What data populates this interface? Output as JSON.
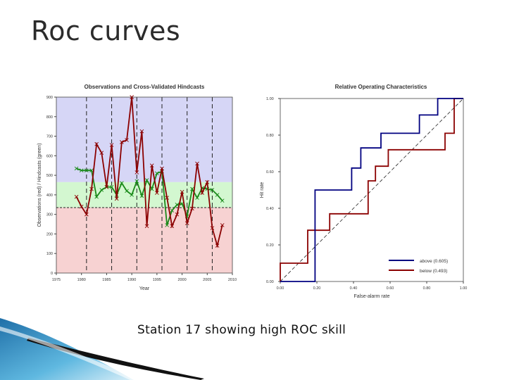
{
  "slide": {
    "title": "Roc curves",
    "caption": "Station 17 showing high ROC skill"
  },
  "colors": {
    "above_band": "#d6d6f6",
    "normal_band": "#d3f7d0",
    "below_band": "#f7d2d2",
    "observations": "#8b0000",
    "hindcasts": "#1a8a1a",
    "roc_above": "#000080",
    "roc_below": "#8b0000"
  },
  "chart_data": [
    {
      "type": "line",
      "title": "Observations and Cross-Validated Hindcasts",
      "xlabel": "Year",
      "ylabel": "Observations (red) / Hindcasts (green)",
      "xlim": [
        1975,
        2010
      ],
      "ylim": [
        0,
        900
      ],
      "x_ticks": [
        "1975",
        "1980",
        "1985",
        "1990",
        "1995",
        "2000",
        "2005",
        "2010"
      ],
      "y_ticks": [
        "0",
        "100",
        "200",
        "300",
        "400",
        "500",
        "600",
        "700",
        "800",
        "900"
      ],
      "tercile_bounds": {
        "lower": 335,
        "upper": 465
      },
      "dashed_year_markers": [
        1981,
        1986,
        1991,
        1996,
        2001,
        2006
      ],
      "x": [
        1979,
        1980,
        1981,
        1982,
        1983,
        1984,
        1985,
        1986,
        1987,
        1988,
        1989,
        1990,
        1991,
        1992,
        1993,
        1994,
        1995,
        1996,
        1997,
        1998,
        1999,
        2000,
        2001,
        2002,
        2003,
        2004,
        2005,
        2006,
        2007,
        2008
      ],
      "series": [
        {
          "name": "Observations",
          "color": "#8b0000",
          "values": [
            390,
            340,
            300,
            430,
            660,
            615,
            440,
            655,
            380,
            670,
            680,
            900,
            515,
            725,
            240,
            550,
            410,
            535,
            385,
            240,
            300,
            415,
            255,
            330,
            560,
            410,
            465,
            230,
            140,
            245
          ]
        },
        {
          "name": "Hindcasts",
          "color": "#1a8a1a",
          "values": [
            535,
            525,
            525,
            525,
            390,
            425,
            440,
            440,
            400,
            460,
            420,
            400,
            470,
            395,
            475,
            430,
            510,
            520,
            245,
            320,
            350,
            355,
            290,
            430,
            385,
            435,
            430,
            425,
            400,
            370
          ]
        }
      ]
    },
    {
      "type": "line",
      "title": "Relative Operating Characteristics",
      "xlabel": "False-alarm rate",
      "ylabel": "Hit rate",
      "xlim": [
        0,
        1
      ],
      "ylim": [
        0,
        1
      ],
      "x_ticks": [
        "0.00",
        "0.20",
        "0.40",
        "0.60",
        "0.80",
        "1.00"
      ],
      "y_ticks": [
        "0.00",
        "0.20",
        "0.40",
        "0.60",
        "0.80",
        "1.00"
      ],
      "legend_position": "bottom-right",
      "series": [
        {
          "name": "above (0.605)",
          "color": "#000080",
          "points": [
            [
              0,
              0
            ],
            [
              0.19,
              0
            ],
            [
              0.19,
              0.5
            ],
            [
              0.39,
              0.5
            ],
            [
              0.39,
              0.62
            ],
            [
              0.44,
              0.62
            ],
            [
              0.44,
              0.73
            ],
            [
              0.55,
              0.73
            ],
            [
              0.55,
              0.81
            ],
            [
              0.76,
              0.81
            ],
            [
              0.76,
              0.91
            ],
            [
              0.86,
              0.91
            ],
            [
              0.86,
              1.0
            ],
            [
              1.0,
              1.0
            ]
          ]
        },
        {
          "name": "below (0.493)",
          "color": "#8b0000",
          "points": [
            [
              0,
              0
            ],
            [
              0,
              0.1
            ],
            [
              0.15,
              0.1
            ],
            [
              0.15,
              0.28
            ],
            [
              0.27,
              0.28
            ],
            [
              0.27,
              0.37
            ],
            [
              0.48,
              0.37
            ],
            [
              0.48,
              0.55
            ],
            [
              0.52,
              0.55
            ],
            [
              0.52,
              0.63
            ],
            [
              0.59,
              0.63
            ],
            [
              0.59,
              0.72
            ],
            [
              0.9,
              0.72
            ],
            [
              0.9,
              0.81
            ],
            [
              0.95,
              0.81
            ],
            [
              0.95,
              1.0
            ],
            [
              1.0,
              1.0
            ]
          ]
        }
      ]
    }
  ]
}
